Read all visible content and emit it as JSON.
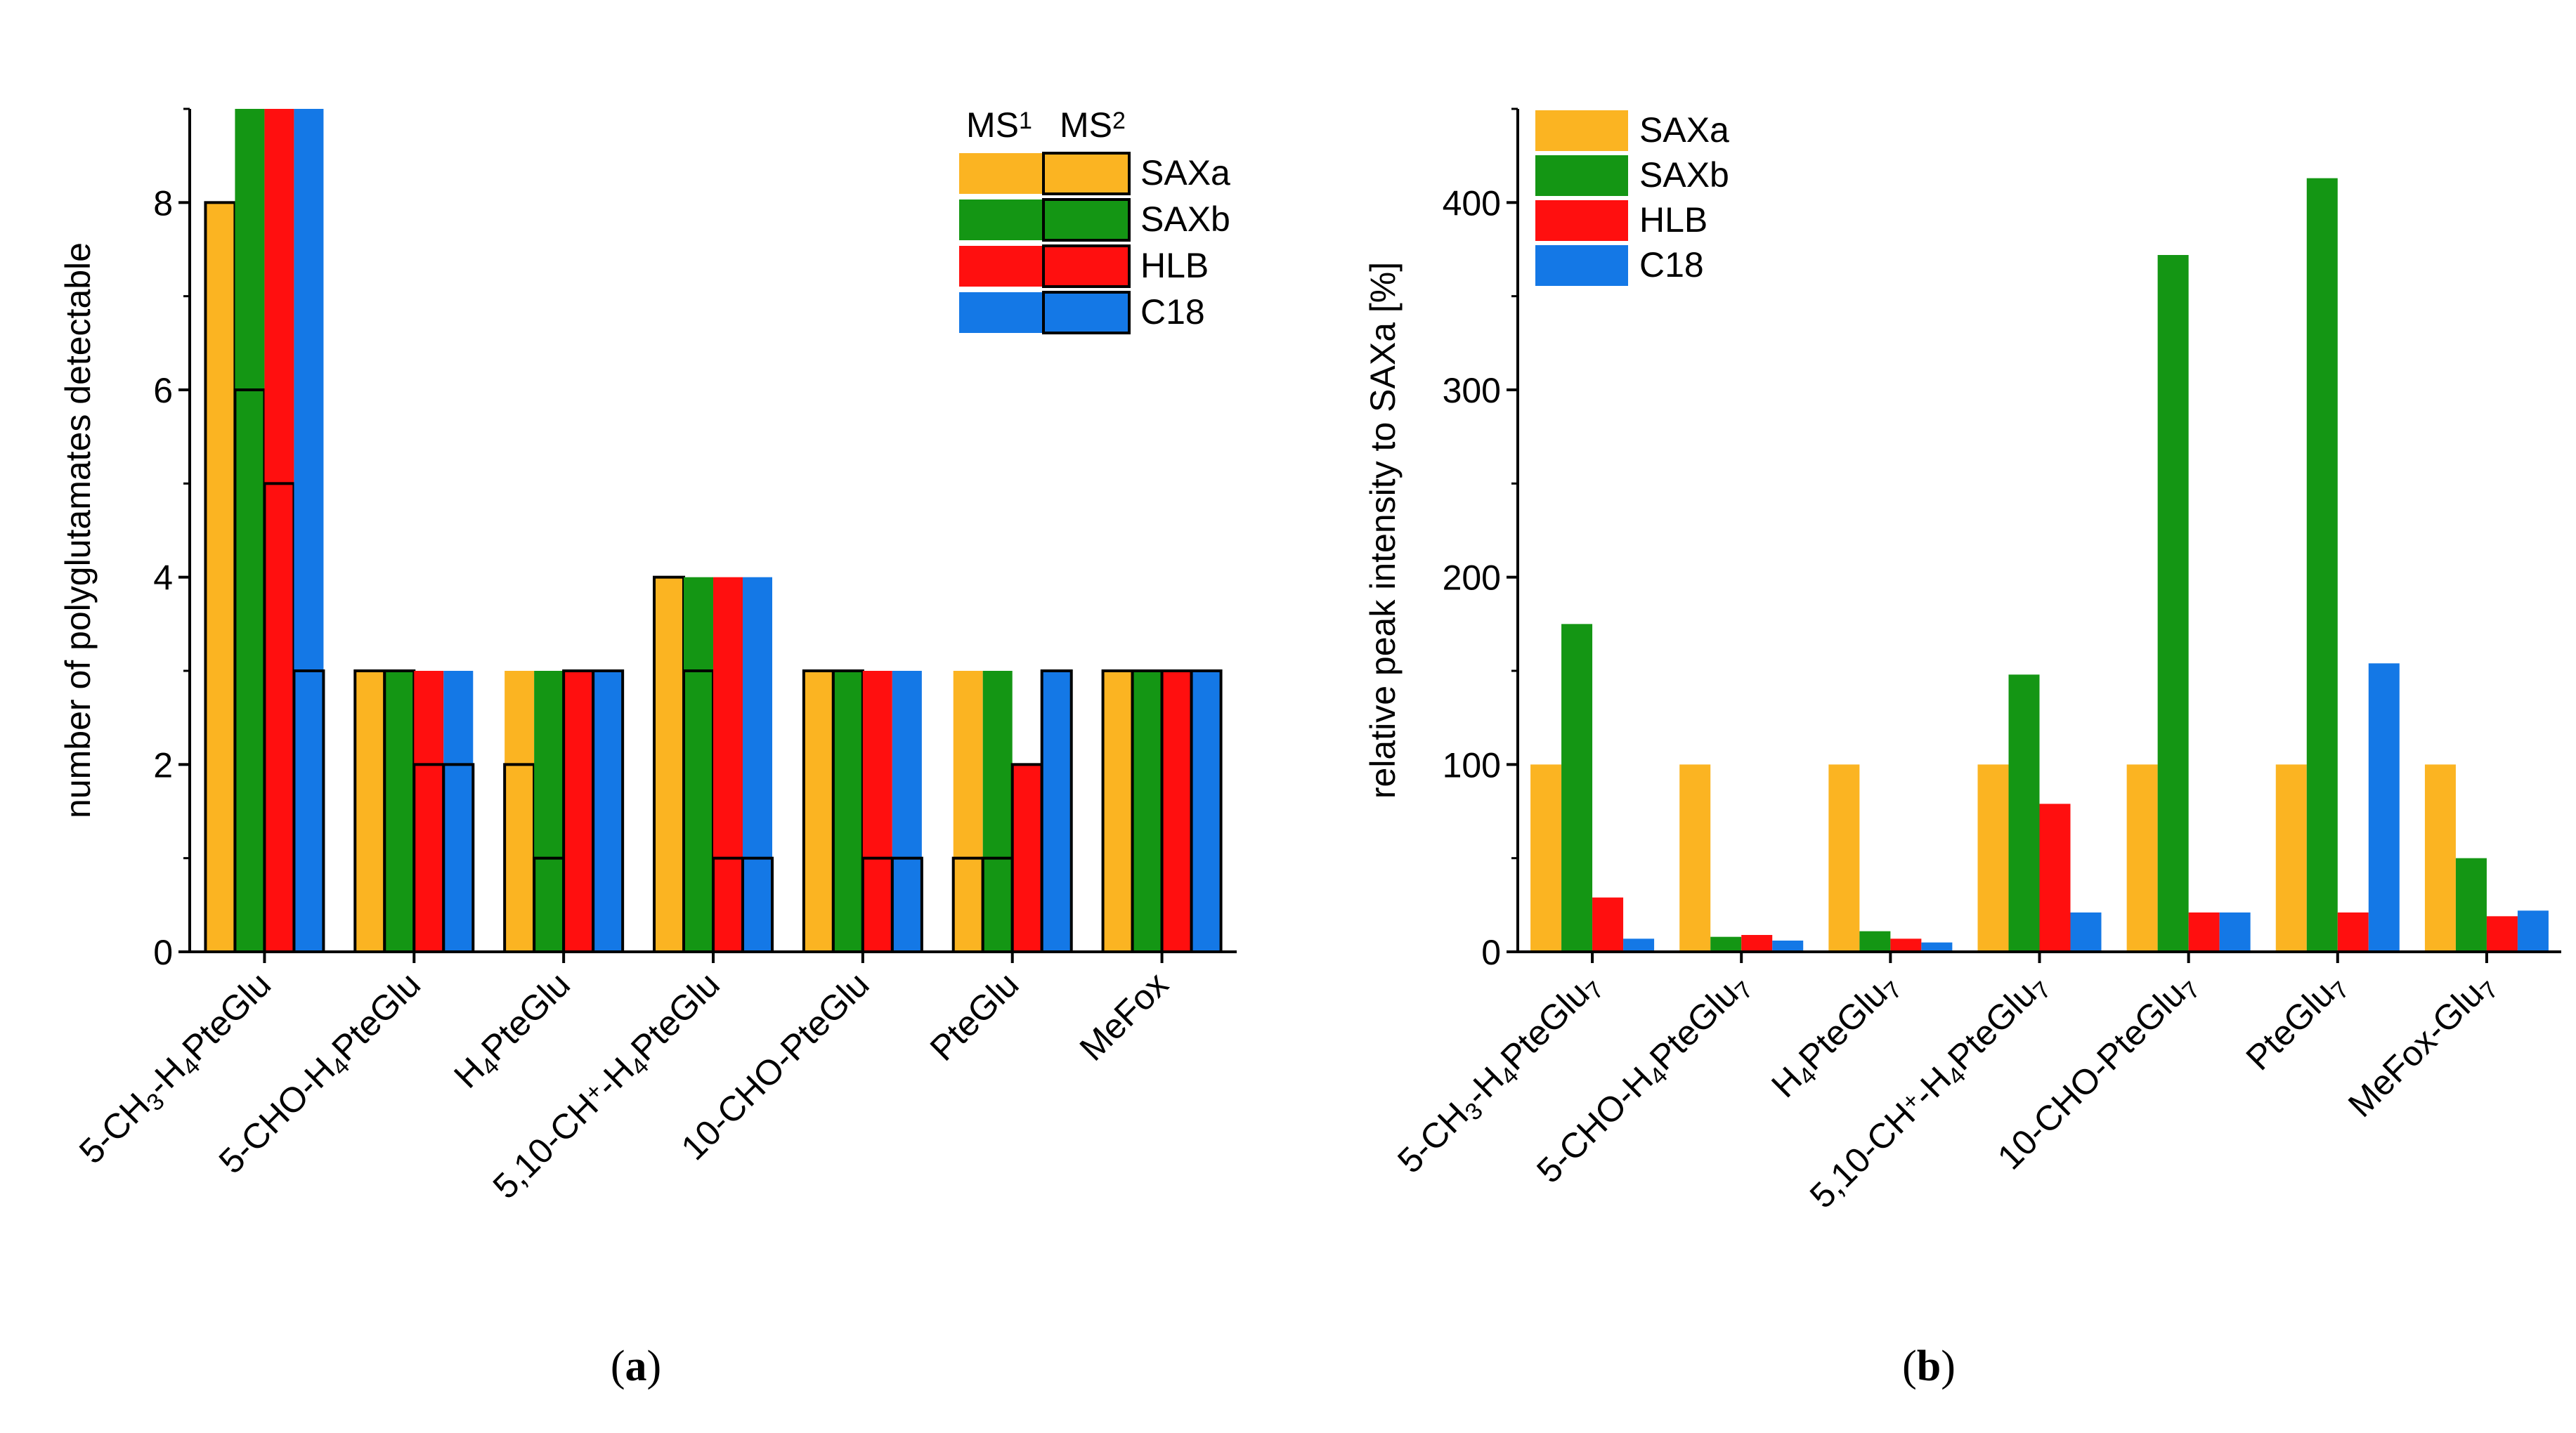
{
  "colors": {
    "SAXa": "#FBB422",
    "SAXb": "#149614",
    "HLB": "#FF0F0F",
    "C18": "#1478E6"
  },
  "chart_data": [
    {
      "panel": "a",
      "caption": "(a)",
      "type": "bar",
      "title": "",
      "xlabel": "",
      "ylabel": "number of polyglutamates detectable",
      "ylim": [
        0,
        9
      ],
      "yticks": [
        0,
        2,
        4,
        6,
        8
      ],
      "categories": [
        "5-CH3-H4PteGlu",
        "5-CHO-H4PteGlu",
        "H4PteGlu",
        "5,10-CH+-H4PteGlu",
        "10-CHO-PteGlu",
        "PteGlu",
        "MeFox"
      ],
      "category_labels": [
        [
          [
            "5-CH",
            ""
          ],
          [
            "3",
            "sub"
          ],
          [
            "-H",
            ""
          ],
          [
            "4",
            "sub"
          ],
          [
            "PteGlu",
            ""
          ]
        ],
        [
          [
            "5-CHO-H",
            ""
          ],
          [
            "4",
            "sub"
          ],
          [
            "PteGlu",
            ""
          ]
        ],
        [
          [
            "H",
            ""
          ],
          [
            "4",
            "sub"
          ],
          [
            "PteGlu",
            ""
          ]
        ],
        [
          [
            "5,10-CH",
            ""
          ],
          [
            "+",
            "sup"
          ],
          [
            "-H",
            ""
          ],
          [
            "4",
            "sub"
          ],
          [
            "PteGlu",
            ""
          ]
        ],
        [
          [
            "10-CHO-PteGlu",
            ""
          ]
        ],
        [
          [
            "PteGlu",
            ""
          ]
        ],
        [
          [
            "MeFox",
            ""
          ]
        ]
      ],
      "legend": {
        "header_ms1": "MS",
        "header_ms1_sup": "1",
        "header_ms2": "MS",
        "header_ms2_sup": "2",
        "entries": [
          "SAXa",
          "SAXb",
          "HLB",
          "C18"
        ]
      },
      "series": [
        {
          "name": "SAXa",
          "MS1": [
            8,
            3,
            3,
            4,
            3,
            3,
            3
          ],
          "MS2": [
            8,
            3,
            2,
            4,
            3,
            1,
            3
          ]
        },
        {
          "name": "SAXb",
          "MS1": [
            9,
            3,
            3,
            4,
            3,
            3,
            3
          ],
          "MS2": [
            6,
            3,
            1,
            3,
            3,
            1,
            3
          ]
        },
        {
          "name": "HLB",
          "MS1": [
            9,
            3,
            3,
            4,
            3,
            2,
            3
          ],
          "MS2": [
            5,
            2,
            3,
            1,
            1,
            2,
            3
          ]
        },
        {
          "name": "C18",
          "MS1": [
            9,
            3,
            3,
            4,
            3,
            3,
            3
          ],
          "MS2": [
            3,
            2,
            3,
            1,
            1,
            3,
            3
          ]
        }
      ]
    },
    {
      "panel": "b",
      "caption": "(b)",
      "type": "bar",
      "title": "",
      "xlabel": "",
      "ylabel": "relative peak intensity to SAXa [%]",
      "ylim": [
        0,
        450
      ],
      "yticks": [
        0,
        100,
        200,
        300,
        400
      ],
      "categories": [
        "5-CH3-H4PteGlu7",
        "5-CHO-H4PteGlu7",
        "H4PteGlu7",
        "5,10-CH+-H4PteGlu7",
        "10-CHO-PteGlu7",
        "PteGlu7",
        "MeFox-Glu7"
      ],
      "category_labels": [
        [
          [
            "5-CH",
            ""
          ],
          [
            "3",
            "sub"
          ],
          [
            "-H",
            ""
          ],
          [
            "4",
            "sub"
          ],
          [
            "PteGlu",
            ""
          ],
          [
            "7",
            "sub"
          ]
        ],
        [
          [
            "5-CHO-H",
            ""
          ],
          [
            "4",
            "sub"
          ],
          [
            "PteGlu",
            ""
          ],
          [
            "7",
            "sub"
          ]
        ],
        [
          [
            "H",
            ""
          ],
          [
            "4",
            "sub"
          ],
          [
            "PteGlu",
            ""
          ],
          [
            "7",
            "sub"
          ]
        ],
        [
          [
            "5,10-CH",
            ""
          ],
          [
            "+",
            "sup"
          ],
          [
            "-H",
            ""
          ],
          [
            "4",
            "sub"
          ],
          [
            "PteGlu",
            ""
          ],
          [
            "7",
            "sub"
          ]
        ],
        [
          [
            "10-CHO-PteGlu",
            ""
          ],
          [
            "7",
            "sub"
          ]
        ],
        [
          [
            "PteGlu",
            ""
          ],
          [
            "7",
            "sub"
          ]
        ],
        [
          [
            "MeFox-Glu",
            ""
          ],
          [
            "7",
            "sub"
          ]
        ]
      ],
      "legend": {
        "entries": [
          "SAXa",
          "SAXb",
          "HLB",
          "C18"
        ],
        "placement": "top-left"
      },
      "series": [
        {
          "name": "SAXa",
          "values": [
            100,
            100,
            100,
            100,
            100,
            100,
            100
          ]
        },
        {
          "name": "SAXb",
          "values": [
            175,
            8,
            11,
            148,
            372,
            413,
            50
          ]
        },
        {
          "name": "HLB",
          "values": [
            29,
            9,
            7,
            79,
            21,
            21,
            19
          ]
        },
        {
          "name": "C18",
          "values": [
            7,
            6,
            5,
            21,
            21,
            154,
            22
          ]
        }
      ]
    }
  ]
}
